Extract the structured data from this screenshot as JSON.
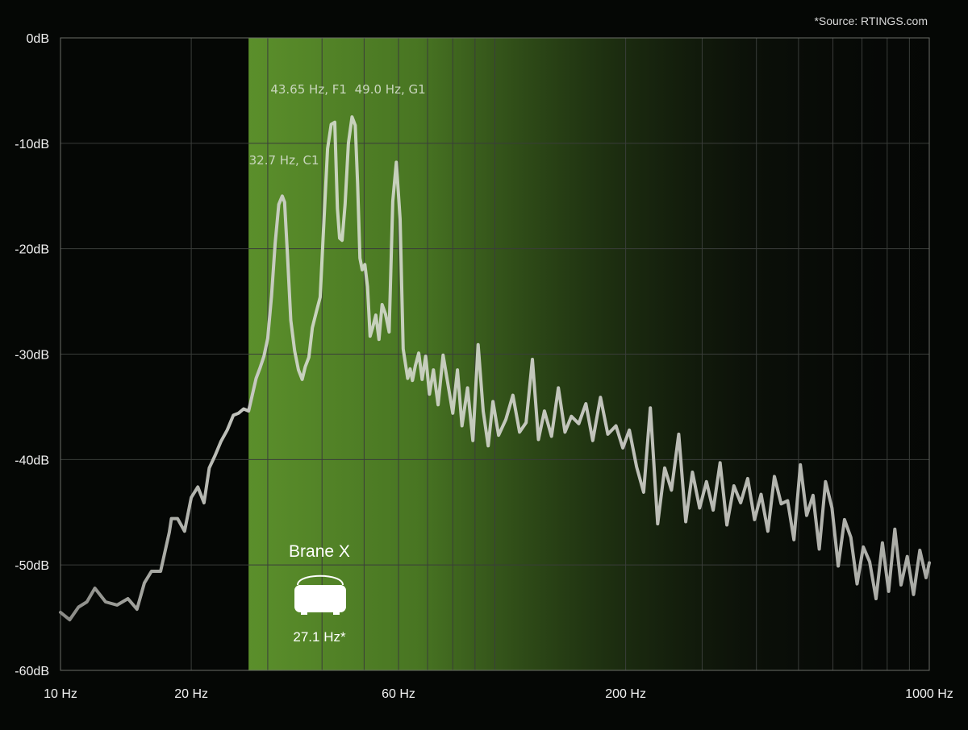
{
  "chart_data": {
    "type": "line",
    "source_note": "*Source: RTINGS.com",
    "x_scale": "log",
    "xlim": [
      10,
      1000
    ],
    "ylim": [
      -60,
      0
    ],
    "grid": true,
    "y_ticks": [
      {
        "value": 0,
        "label": "0dB"
      },
      {
        "value": -10,
        "label": "-10dB"
      },
      {
        "value": -20,
        "label": "-20dB"
      },
      {
        "value": -30,
        "label": "-30dB"
      },
      {
        "value": -40,
        "label": "-40dB"
      },
      {
        "value": -50,
        "label": "-50dB"
      },
      {
        "value": -60,
        "label": "-60dB"
      }
    ],
    "x_ticks": [
      {
        "value": 10,
        "label": "10 Hz"
      },
      {
        "value": 20,
        "label": "20 Hz"
      },
      {
        "value": 60,
        "label": "60 Hz"
      },
      {
        "value": 200,
        "label": "200 Hz"
      },
      {
        "value": 1000,
        "label": "1000 Hz"
      }
    ],
    "x_minor_gridlines": [
      20,
      30,
      40,
      50,
      60,
      70,
      80,
      90,
      100,
      200,
      300,
      400,
      500,
      600,
      700,
      800,
      900
    ],
    "highlight_band": {
      "from_hz": 27.1,
      "to_hz": 1000,
      "color": "#5a8f2a"
    },
    "product": {
      "name": "Brane X",
      "value_label": "27.1 Hz*",
      "value_hz": 27.1
    },
    "annotations": [
      {
        "label": "32.7 Hz, C1",
        "x": 32.7,
        "y": -15
      },
      {
        "label": "43.65 Hz, F1",
        "x": 43.65,
        "y": -7.8
      },
      {
        "label": "49.0 Hz, G1",
        "x": 49.0,
        "y": -7.5
      }
    ],
    "series": [
      {
        "color": "#b5b8ae",
        "x": [
          10,
          10.5,
          11,
          11.5,
          12,
          12.7,
          13.5,
          14.3,
          15,
          15.6,
          16.2,
          17,
          17.8,
          18,
          18.6,
          19.3,
          20,
          20.7,
          21.4,
          22,
          22.7,
          23.4,
          24.2,
          25,
          25.7,
          26.4,
          27.1,
          27.6,
          28.2,
          28.8,
          29.4,
          30,
          30.6,
          31.2,
          31.8,
          32.4,
          32.8,
          33.3,
          33.9,
          34.6,
          35.3,
          36,
          36.6,
          37.3,
          38,
          38.8,
          39.6,
          40.4,
          41.2,
          42,
          42.8,
          43.4,
          43.9,
          44.5,
          45.2,
          46,
          46.9,
          47.7,
          48.3,
          48.9,
          49.5,
          50.2,
          50.9,
          51.6,
          52.3,
          53.2,
          54.1,
          55,
          56,
          57.1,
          58.2,
          59.3,
          60.5,
          61.5,
          62.3,
          63,
          63.8,
          64.6,
          65.6,
          66.8,
          68,
          69.3,
          70.7,
          72.2,
          74,
          76,
          78,
          80,
          82,
          84,
          86.5,
          89,
          91.5,
          94,
          96.5,
          99,
          102,
          106,
          110,
          114,
          118,
          122,
          126,
          130,
          135,
          140,
          145,
          150,
          156,
          162,
          168,
          175,
          182,
          190,
          197,
          204,
          212,
          220,
          228,
          237,
          246,
          255,
          265,
          275,
          285,
          296,
          307,
          318,
          330,
          342,
          355,
          368,
          382,
          396,
          410,
          425,
          440,
          456,
          472,
          488,
          505,
          522,
          540,
          558,
          577,
          597,
          617,
          638,
          660,
          682,
          705,
          729,
          754,
          780,
          806,
          833,
          861,
          890,
          920,
          951,
          983,
          1000
        ],
        "y": [
          -54.5,
          -55.2,
          -54,
          -53.5,
          -52.2,
          -53.5,
          -53.8,
          -53.2,
          -54.2,
          -51.7,
          -50.6,
          -50.6,
          -46.9,
          -45.6,
          -45.6,
          -46.8,
          -43.6,
          -42.6,
          -44.1,
          -40.8,
          -39.6,
          -38.3,
          -37.2,
          -35.8,
          -35.6,
          -35.2,
          -35.4,
          -34,
          -32.3,
          -31.3,
          -30.2,
          -28.5,
          -24.5,
          -19.5,
          -15.8,
          -15,
          -15.6,
          -20.5,
          -26.8,
          -29.7,
          -31.5,
          -32.4,
          -31.2,
          -30.3,
          -27.5,
          -26,
          -24.6,
          -17.5,
          -10.5,
          -8.2,
          -8,
          -16.2,
          -19,
          -19.2,
          -15.8,
          -10,
          -7.5,
          -8.3,
          -13.8,
          -20.9,
          -22,
          -21.5,
          -23.6,
          -28.3,
          -27.5,
          -26.3,
          -28.6,
          -25.3,
          -26.2,
          -27.9,
          -15.5,
          -11.8,
          -17.2,
          -29.5,
          -31,
          -32.3,
          -31.4,
          -32.5,
          -31.1,
          -29.9,
          -32.4,
          -30.2,
          -33.8,
          -31.5,
          -34.8,
          -30.1,
          -32.9,
          -35.6,
          -31.5,
          -36.8,
          -33.2,
          -38.2,
          -29.1,
          -35.4,
          -38.7,
          -34.5,
          -37.7,
          -36.2,
          -33.9,
          -37.4,
          -36.5,
          -30.5,
          -38.1,
          -35.4,
          -37.8,
          -33.2,
          -37.4,
          -35.9,
          -36.6,
          -34.7,
          -38.2,
          -34.1,
          -37.6,
          -36.8,
          -38.9,
          -37.2,
          -40.7,
          -43.1,
          -35.1,
          -46.1,
          -40.8,
          -42.9,
          -37.6,
          -45.9,
          -41.2,
          -44.6,
          -42.1,
          -44.8,
          -40.3,
          -46.2,
          -42.5,
          -44.1,
          -41.8,
          -45.7,
          -43.3,
          -46.8,
          -41.6,
          -44.2,
          -43.9,
          -47.6,
          -40.5,
          -45.3,
          -43.4,
          -48.5,
          -42.1,
          -44.6,
          -50.1,
          -45.7,
          -47.4,
          -51.8,
          -48.3,
          -49.7,
          -53.2,
          -47.9,
          -52.5,
          -46.6,
          -51.9,
          -49.2,
          -52.8,
          -48.6,
          -51.2,
          -49.8
        ]
      }
    ]
  }
}
